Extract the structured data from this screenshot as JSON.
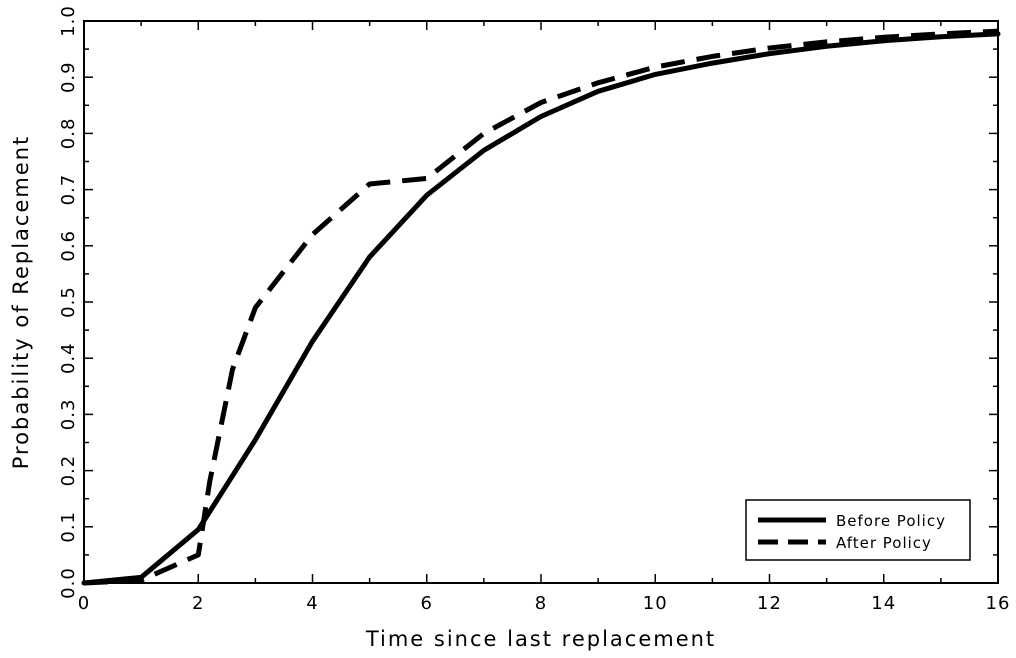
{
  "chart_data": {
    "type": "line",
    "title": "",
    "xlabel": "Time since last replacement",
    "ylabel": "Probability of Replacement",
    "xlim": [
      0,
      16
    ],
    "ylim": [
      0.0,
      1.0
    ],
    "x_ticks": [
      0,
      2,
      4,
      6,
      8,
      10,
      12,
      14,
      16
    ],
    "x_tick_labels": [
      "0",
      "2",
      "4",
      "6",
      "8",
      "10",
      "12",
      "14",
      "16"
    ],
    "y_ticks": [
      0.0,
      0.1,
      0.2,
      0.3,
      0.4,
      0.5,
      0.6,
      0.7,
      0.8,
      0.9,
      1.0
    ],
    "y_tick_labels": [
      "0.0",
      "0.1",
      "0.2",
      "0.3",
      "0.4",
      "0.5",
      "0.6",
      "0.7",
      "0.8",
      "0.9",
      "1.0"
    ],
    "grid": false,
    "legend_position": "bottom-right",
    "series": [
      {
        "name": "Before Policy",
        "style": "solid",
        "color": "#000000",
        "x": [
          0,
          1,
          2,
          3,
          4,
          5,
          6,
          7,
          8,
          9,
          10,
          11,
          12,
          13,
          14,
          15,
          16
        ],
        "y": [
          0.0,
          0.01,
          0.095,
          0.255,
          0.43,
          0.58,
          0.69,
          0.77,
          0.83,
          0.875,
          0.905,
          0.925,
          0.942,
          0.955,
          0.965,
          0.972,
          0.977
        ]
      },
      {
        "name": "After Policy",
        "style": "dashed",
        "color": "#000000",
        "x": [
          0,
          1,
          2,
          2.2,
          2.6,
          3,
          4,
          5,
          6,
          7,
          8,
          9,
          10,
          11,
          12,
          13,
          14,
          15,
          16
        ],
        "y": [
          0.0,
          0.005,
          0.05,
          0.18,
          0.38,
          0.49,
          0.62,
          0.71,
          0.72,
          0.8,
          0.855,
          0.89,
          0.918,
          0.937,
          0.952,
          0.963,
          0.971,
          0.977,
          0.982
        ]
      }
    ]
  }
}
